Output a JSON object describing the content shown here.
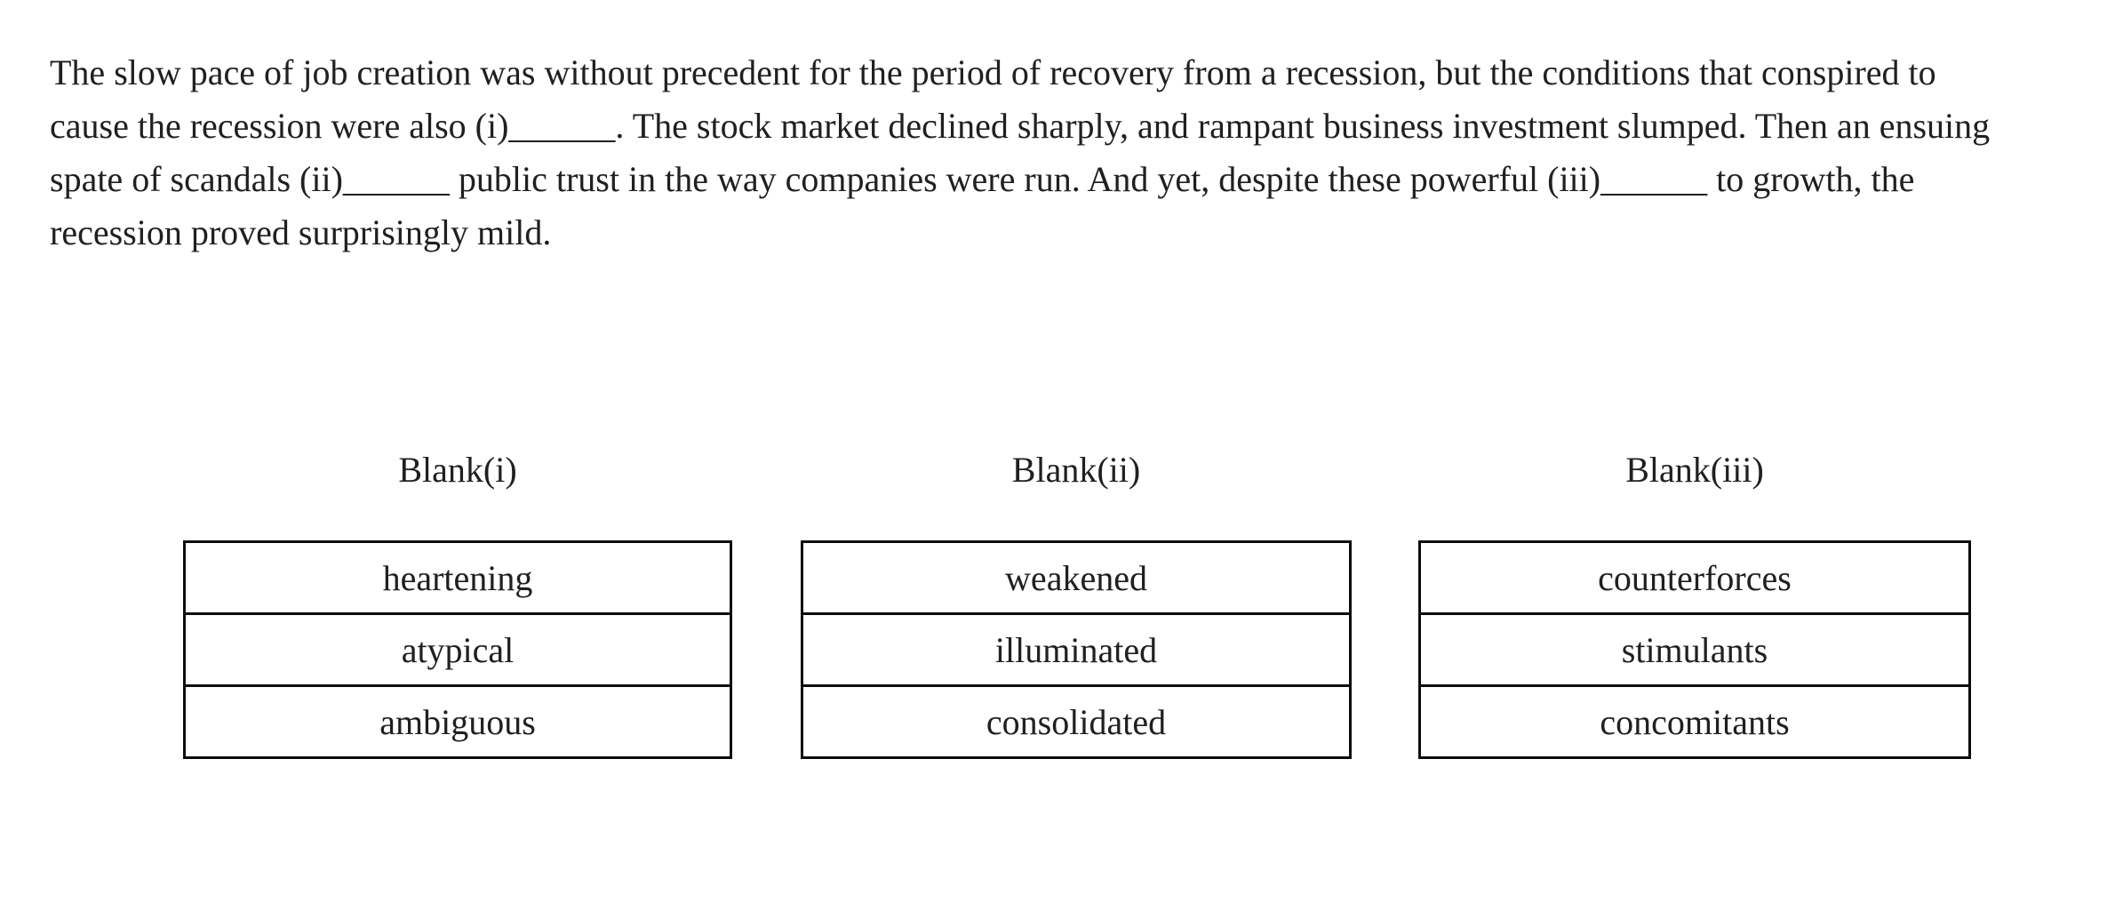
{
  "question": {
    "passage_lines": [
      "The slow pace of job creation was without precedent for the period of recovery from a recession, but the conditions that conspired to",
      "cause the recession were also (i)______. The stock market declined sharply, and rampant business investment slumped. Then an ensuing",
      "spate of scandals (ii)______ public trust in the way companies were run. And yet, despite these powerful (iii)______ to growth, the",
      "recession proved surprisingly mild."
    ]
  },
  "blanks": [
    {
      "label": "Blank(i)",
      "options": [
        "heartening",
        "atypical",
        "ambiguous"
      ]
    },
    {
      "label": "Blank(ii)",
      "options": [
        "weakened",
        "illuminated",
        "consolidated"
      ]
    },
    {
      "label": "Blank(iii)",
      "options": [
        "counterforces",
        "stimulants",
        "concomitants"
      ]
    }
  ],
  "colors": {
    "background": "#ffffff",
    "text": "#202022",
    "table_border": "#0d0d0d"
  }
}
